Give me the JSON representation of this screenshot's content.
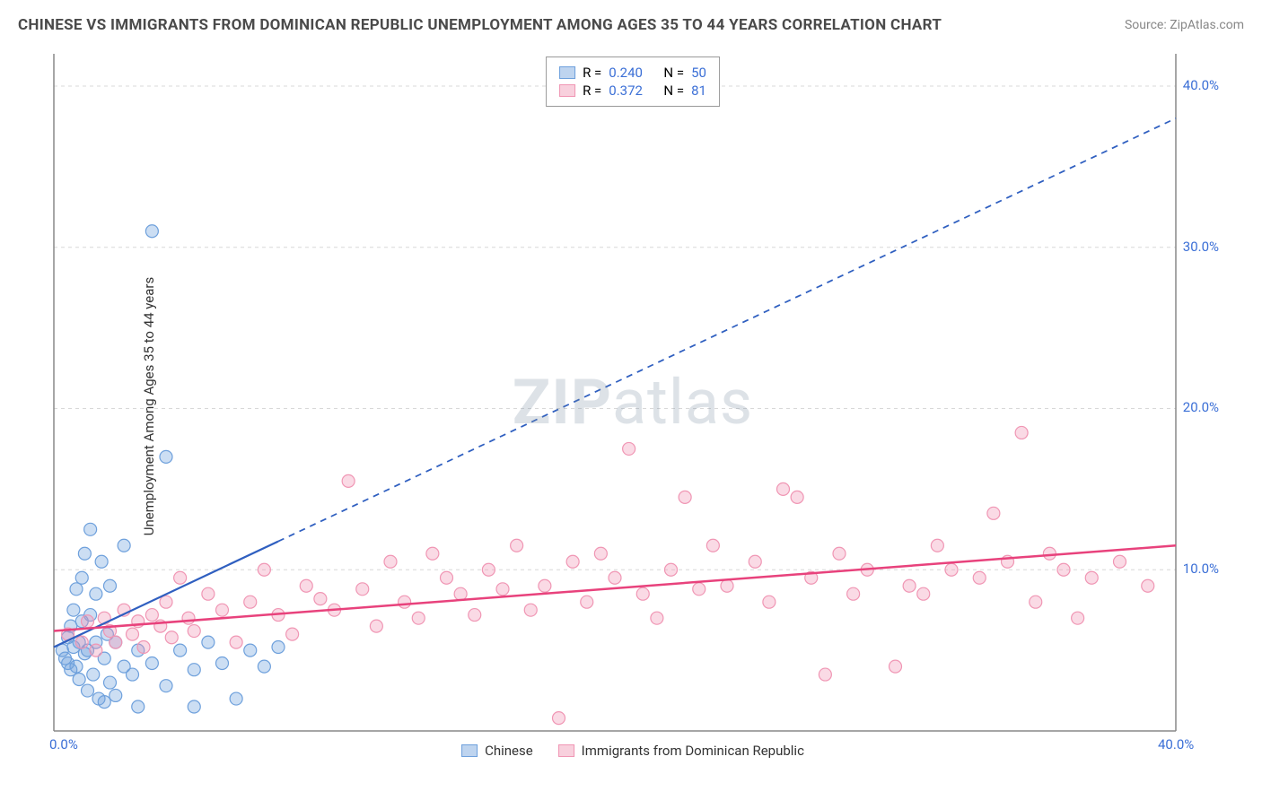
{
  "title": "CHINESE VS IMMIGRANTS FROM DOMINICAN REPUBLIC UNEMPLOYMENT AMONG AGES 35 TO 44 YEARS CORRELATION CHART",
  "source": "Source: ZipAtlas.com",
  "y_axis_label": "Unemployment Among Ages 35 to 44 years",
  "watermark_bold": "ZIP",
  "watermark_light": "atlas",
  "chart": {
    "type": "scatter",
    "background_color": "#ffffff",
    "grid_color": "#d8d8d8",
    "grid_dash": "4 4",
    "axis_color": "#888888",
    "tick_color": "#3b6fd6",
    "xlim": [
      0,
      40
    ],
    "ylim": [
      0,
      42
    ],
    "x_ticks": [
      {
        "v": 0,
        "label": "0.0%"
      },
      {
        "v": 40,
        "label": "40.0%"
      }
    ],
    "y_ticks": [
      {
        "v": 10,
        "label": "10.0%"
      },
      {
        "v": 20,
        "label": "20.0%"
      },
      {
        "v": 30,
        "label": "30.0%"
      },
      {
        "v": 40,
        "label": "40.0%"
      }
    ],
    "y_gridlines": [
      10,
      20,
      30,
      40
    ],
    "marker_radius": 7,
    "marker_stroke_width": 1.2,
    "series": [
      {
        "name": "Chinese",
        "fill": "rgba(110,160,220,0.35)",
        "stroke": "#6ea0dc",
        "R": "0.240",
        "N": "50",
        "trend": {
          "x1": 0,
          "y1": 5.2,
          "x2": 40,
          "y2": 38.0,
          "color": "#2f5fc0",
          "width": 2.2,
          "solid_until_x": 8,
          "dash": "7 6"
        },
        "points": [
          [
            0.3,
            5.0
          ],
          [
            0.4,
            4.5
          ],
          [
            0.5,
            5.8
          ],
          [
            0.5,
            4.2
          ],
          [
            0.6,
            6.5
          ],
          [
            0.6,
            3.8
          ],
          [
            0.7,
            5.2
          ],
          [
            0.7,
            7.5
          ],
          [
            0.8,
            4.0
          ],
          [
            0.8,
            8.8
          ],
          [
            0.9,
            5.5
          ],
          [
            0.9,
            3.2
          ],
          [
            1.0,
            6.8
          ],
          [
            1.0,
            9.5
          ],
          [
            1.1,
            4.8
          ],
          [
            1.1,
            11.0
          ],
          [
            1.2,
            5.0
          ],
          [
            1.2,
            2.5
          ],
          [
            1.3,
            7.2
          ],
          [
            1.3,
            12.5
          ],
          [
            1.4,
            3.5
          ],
          [
            1.5,
            8.5
          ],
          [
            1.5,
            5.5
          ],
          [
            1.6,
            2.0
          ],
          [
            1.7,
            10.5
          ],
          [
            1.8,
            4.5
          ],
          [
            1.8,
            1.8
          ],
          [
            1.9,
            6.0
          ],
          [
            2.0,
            3.0
          ],
          [
            2.0,
            9.0
          ],
          [
            2.2,
            5.5
          ],
          [
            2.2,
            2.2
          ],
          [
            2.5,
            4.0
          ],
          [
            2.5,
            11.5
          ],
          [
            2.8,
            3.5
          ],
          [
            3.0,
            5.0
          ],
          [
            3.0,
            1.5
          ],
          [
            3.5,
            4.2
          ],
          [
            3.5,
            31.0
          ],
          [
            4.0,
            2.8
          ],
          [
            4.0,
            17.0
          ],
          [
            4.5,
            5.0
          ],
          [
            5.0,
            3.8
          ],
          [
            5.0,
            1.5
          ],
          [
            5.5,
            5.5
          ],
          [
            6.0,
            4.2
          ],
          [
            6.5,
            2.0
          ],
          [
            7.0,
            5.0
          ],
          [
            7.5,
            4.0
          ],
          [
            8.0,
            5.2
          ]
        ]
      },
      {
        "name": "Immigrants from Dominican Republic",
        "fill": "rgba(240,150,180,0.35)",
        "stroke": "#f096b4",
        "R": "0.372",
        "N": "81",
        "trend": {
          "x1": 0,
          "y1": 6.2,
          "x2": 40,
          "y2": 11.5,
          "color": "#e8427c",
          "width": 2.5,
          "solid_until_x": 40,
          "dash": ""
        },
        "points": [
          [
            0.5,
            6.0
          ],
          [
            1.0,
            5.5
          ],
          [
            1.2,
            6.8
          ],
          [
            1.5,
            5.0
          ],
          [
            1.8,
            7.0
          ],
          [
            2.0,
            6.2
          ],
          [
            2.2,
            5.5
          ],
          [
            2.5,
            7.5
          ],
          [
            2.8,
            6.0
          ],
          [
            3.0,
            6.8
          ],
          [
            3.2,
            5.2
          ],
          [
            3.5,
            7.2
          ],
          [
            3.8,
            6.5
          ],
          [
            4.0,
            8.0
          ],
          [
            4.2,
            5.8
          ],
          [
            4.5,
            9.5
          ],
          [
            4.8,
            7.0
          ],
          [
            5.0,
            6.2
          ],
          [
            5.5,
            8.5
          ],
          [
            6.0,
            7.5
          ],
          [
            6.5,
            5.5
          ],
          [
            7.0,
            8.0
          ],
          [
            7.5,
            10.0
          ],
          [
            8.0,
            7.2
          ],
          [
            8.5,
            6.0
          ],
          [
            9.0,
            9.0
          ],
          [
            9.5,
            8.2
          ],
          [
            10.0,
            7.5
          ],
          [
            10.5,
            15.5
          ],
          [
            11.0,
            8.8
          ],
          [
            11.5,
            6.5
          ],
          [
            12.0,
            10.5
          ],
          [
            12.5,
            8.0
          ],
          [
            13.0,
            7.0
          ],
          [
            13.5,
            11.0
          ],
          [
            14.0,
            9.5
          ],
          [
            14.5,
            8.5
          ],
          [
            15.0,
            7.2
          ],
          [
            15.5,
            10.0
          ],
          [
            16.0,
            8.8
          ],
          [
            16.5,
            11.5
          ],
          [
            17.0,
            7.5
          ],
          [
            17.5,
            9.0
          ],
          [
            18.0,
            0.8
          ],
          [
            18.5,
            10.5
          ],
          [
            19.0,
            8.0
          ],
          [
            19.5,
            11.0
          ],
          [
            20.0,
            9.5
          ],
          [
            20.5,
            17.5
          ],
          [
            21.0,
            8.5
          ],
          [
            21.5,
            7.0
          ],
          [
            22.0,
            10.0
          ],
          [
            22.5,
            14.5
          ],
          [
            23.0,
            8.8
          ],
          [
            23.5,
            11.5
          ],
          [
            24.0,
            9.0
          ],
          [
            25.0,
            10.5
          ],
          [
            25.5,
            8.0
          ],
          [
            26.0,
            15.0
          ],
          [
            26.5,
            14.5
          ],
          [
            27.0,
            9.5
          ],
          [
            27.5,
            3.5
          ],
          [
            28.0,
            11.0
          ],
          [
            28.5,
            8.5
          ],
          [
            29.0,
            10.0
          ],
          [
            30.0,
            4.0
          ],
          [
            30.5,
            9.0
          ],
          [
            31.0,
            8.5
          ],
          [
            31.5,
            11.5
          ],
          [
            32.0,
            10.0
          ],
          [
            33.0,
            9.5
          ],
          [
            33.5,
            13.5
          ],
          [
            34.0,
            10.5
          ],
          [
            34.5,
            18.5
          ],
          [
            35.0,
            8.0
          ],
          [
            35.5,
            11.0
          ],
          [
            36.0,
            10.0
          ],
          [
            36.5,
            7.0
          ],
          [
            37.0,
            9.5
          ],
          [
            38.0,
            10.5
          ],
          [
            39.0,
            9.0
          ]
        ]
      }
    ]
  },
  "legend_top": {
    "label_R": "R =",
    "label_N": "N ="
  },
  "legend_bottom": {
    "items": [
      "Chinese",
      "Immigrants from Dominican Republic"
    ]
  }
}
